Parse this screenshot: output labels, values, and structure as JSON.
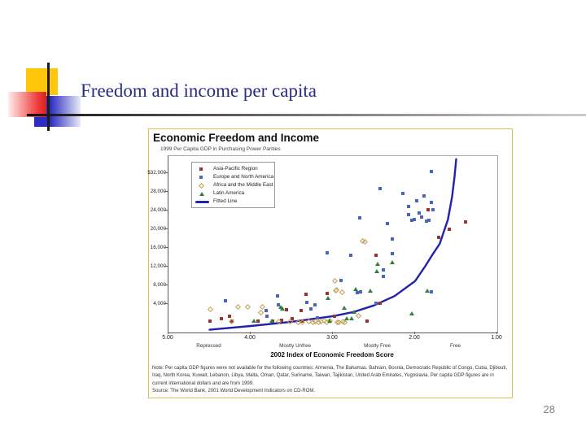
{
  "slide": {
    "title": "Freedom and income per capita",
    "page_number": "28"
  },
  "chart_data": {
    "type": "scatter",
    "title": "Economic Freedom and Income",
    "subtitle": "1999 Per Capita GDP in Purchasing Power Parities",
    "xlabel": "2002 Index of Economic Freedom Score",
    "x_axis_reversed": true,
    "xlim": [
      5.0,
      1.0
    ],
    "ylim": [
      -2000,
      34000
    ],
    "grid": false,
    "legend_position": "top-left-inside",
    "x_ticks": [
      5.0,
      4.0,
      3.0,
      2.0,
      1.0
    ],
    "x_tick_labels": [
      "5.00",
      "4.00",
      "3.00",
      "2.00",
      "1.00"
    ],
    "x_category_labels": [
      "Repressed",
      "Mostly Unfree",
      "Mostly Free",
      "Free"
    ],
    "x_category_positions": [
      4.5,
      3.45,
      2.45,
      1.5
    ],
    "y_tick_values": [
      32000,
      28000,
      24000,
      20000,
      16000,
      12000,
      8000,
      4000
    ],
    "y_tick_labels": [
      "$32,000",
      "28,000",
      "24,000",
      "20,000",
      "16,000",
      "12,000",
      "8,000",
      "4,000"
    ],
    "series": [
      {
        "name": "Asia-Pacific Region",
        "marker": "square",
        "color": "#993333",
        "points": [
          [
            4.5,
            300
          ],
          [
            4.36,
            900
          ],
          [
            4.26,
            1400
          ],
          [
            4.23,
            300
          ],
          [
            3.91,
            300
          ],
          [
            3.73,
            400
          ],
          [
            3.62,
            600
          ],
          [
            3.56,
            2700
          ],
          [
            3.5,
            800
          ],
          [
            3.39,
            2600
          ],
          [
            3.38,
            300
          ],
          [
            3.33,
            6100
          ],
          [
            3.07,
            6300
          ],
          [
            2.98,
            1400
          ],
          [
            2.58,
            300
          ],
          [
            2.48,
            14500
          ],
          [
            2.43,
            4200
          ],
          [
            1.84,
            24200
          ],
          [
            1.71,
            18300
          ],
          [
            1.58,
            20000
          ],
          [
            1.39,
            21600
          ]
        ]
      },
      {
        "name": "Europe and North America",
        "marker": "square",
        "color": "#4A66B8",
        "points": [
          [
            4.31,
            4700
          ],
          [
            3.81,
            2600
          ],
          [
            3.8,
            1400
          ],
          [
            3.67,
            5700
          ],
          [
            3.66,
            3800
          ],
          [
            3.32,
            4400
          ],
          [
            3.27,
            2900
          ],
          [
            3.22,
            3800
          ],
          [
            3.19,
            1000
          ],
          [
            3.07,
            14900
          ],
          [
            2.9,
            9100
          ],
          [
            2.78,
            14400
          ],
          [
            2.7,
            6400
          ],
          [
            2.67,
            22400
          ],
          [
            2.66,
            6600
          ],
          [
            2.48,
            4100
          ],
          [
            2.43,
            28700
          ],
          [
            2.39,
            11300
          ],
          [
            2.39,
            9900
          ],
          [
            2.34,
            21300
          ],
          [
            2.28,
            17900
          ],
          [
            2.28,
            14800
          ],
          [
            2.15,
            27700
          ],
          [
            2.08,
            24900
          ],
          [
            2.08,
            23200
          ],
          [
            2.04,
            21900
          ],
          [
            2.01,
            22100
          ],
          [
            1.98,
            26100
          ],
          [
            1.95,
            23400
          ],
          [
            1.92,
            22600
          ],
          [
            1.89,
            27200
          ],
          [
            1.86,
            21700
          ],
          [
            1.83,
            21900
          ],
          [
            1.8,
            32300
          ],
          [
            1.8,
            25800
          ],
          [
            1.8,
            6600
          ],
          [
            1.78,
            24100
          ]
        ]
      },
      {
        "name": "Africa and the Middle East",
        "marker": "diamond-open",
        "color": "#C0A050",
        "points": [
          [
            4.5,
            3000
          ],
          [
            4.24,
            400
          ],
          [
            4.16,
            3500
          ],
          [
            4.04,
            3400
          ],
          [
            3.88,
            2300
          ],
          [
            3.86,
            3400
          ],
          [
            3.66,
            300
          ],
          [
            3.52,
            300
          ],
          [
            3.43,
            200
          ],
          [
            3.38,
            100
          ],
          [
            3.3,
            300
          ],
          [
            3.25,
            100
          ],
          [
            3.22,
            400
          ],
          [
            3.18,
            100
          ],
          [
            3.15,
            400
          ],
          [
            3.11,
            600
          ],
          [
            3.08,
            200
          ],
          [
            3.04,
            500
          ],
          [
            2.98,
            9100
          ],
          [
            2.97,
            6900
          ],
          [
            2.96,
            7100
          ],
          [
            2.95,
            100
          ],
          [
            2.93,
            200
          ],
          [
            2.89,
            6600
          ],
          [
            2.88,
            300
          ],
          [
            2.86,
            200
          ],
          [
            2.69,
            1600
          ],
          [
            2.64,
            17600
          ],
          [
            2.61,
            17400
          ]
        ]
      },
      {
        "name": "Latin America",
        "marker": "triangle",
        "color": "#2E8040",
        "points": [
          [
            3.96,
            300
          ],
          [
            3.74,
            300
          ],
          [
            3.63,
            3300
          ],
          [
            3.61,
            2900
          ],
          [
            3.06,
            5200
          ],
          [
            3.04,
            300
          ],
          [
            2.86,
            3200
          ],
          [
            2.83,
            900
          ],
          [
            2.77,
            800
          ],
          [
            2.74,
            2300
          ],
          [
            2.72,
            7100
          ],
          [
            2.54,
            6800
          ],
          [
            2.47,
            10900
          ],
          [
            2.46,
            12500
          ],
          [
            2.28,
            12900
          ],
          [
            2.04,
            2000
          ],
          [
            1.85,
            6800
          ]
        ]
      }
    ],
    "fitted_line": {
      "name": "Fitted Line",
      "color": "#2121AE",
      "points": [
        [
          4.5,
          -1500
        ],
        [
          4.0,
          -700
        ],
        [
          3.5,
          200
        ],
        [
          3.0,
          1400
        ],
        [
          2.75,
          2300
        ],
        [
          2.5,
          3700
        ],
        [
          2.25,
          5700
        ],
        [
          2.0,
          8900
        ],
        [
          1.88,
          12000
        ],
        [
          1.78,
          14800
        ],
        [
          1.7,
          16900
        ],
        [
          1.6,
          22100
        ],
        [
          1.55,
          27000
        ],
        [
          1.52,
          31300
        ],
        [
          1.5,
          35000
        ]
      ]
    },
    "notes": [
      "Note: Per capita GDP figures were not available for the following countries: Armenia, The Bahamas, Bahrain, Bosnia, Democratic Republic of Congo, Cuba, Djibouti,",
      "Iraq, North Korea, Kuwait, Lebanon, Libya, Malta, Oman, Qatar, Suriname, Taiwan, Tajikistan, United Arab Emirates, Yugoslavia. Per capita GDP figures are in",
      "current international dollars and are from 1999."
    ],
    "source": "Source: The World Bank, 2001 World Development Indicators on CD-ROM."
  }
}
